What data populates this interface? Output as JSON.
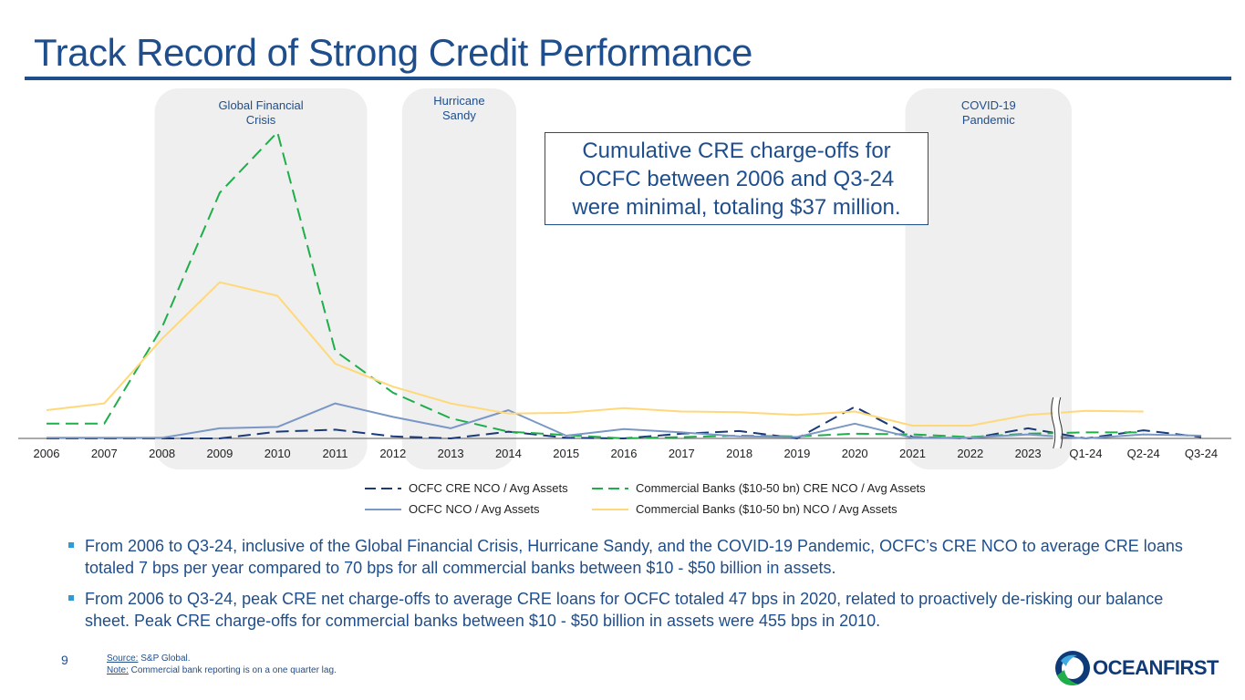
{
  "slide": {
    "title": "Track Record of Strong Credit Performance",
    "page_number": "9"
  },
  "callout": {
    "text": "Cumulative CRE charge-offs for OCFC between 2006 and Q3-24 were minimal, totaling $37 million."
  },
  "bullets": [
    "From 2006 to Q3-24, inclusive of the Global Financial Crisis, Hurricane Sandy, and the COVID-19 Pandemic, OCFC’s CRE NCO to average CRE loans totaled 7 bps per year compared to 70 bps for all commercial banks between $10 - $50 billion in assets.",
    "From 2006 to Q3-24, peak CRE net charge-offs to average CRE loans for OCFC totaled 47 bps in 2020, related to proactively de-risking our balance sheet. Peak CRE charge-offs for commercial banks between $10 - $50 billion in assets were 455 bps in 2010."
  ],
  "footnote": {
    "source_label": "Source:",
    "source_text": " S&P Global.",
    "note_label": "Note:",
    "note_text": " Commercial bank reporting is on a one quarter lag."
  },
  "logo": {
    "text": "OCEANFIRST"
  },
  "colors": {
    "title": "#1f4e8c",
    "ocfc_cre": "#1a3a7a",
    "bank_cre": "#1fae4a",
    "ocfc_nco": "#7a97c5",
    "bank_nco": "#ffd87a",
    "shade": "#efefef"
  },
  "chart_data": {
    "type": "line",
    "categories": [
      "2006",
      "2007",
      "2008",
      "2009",
      "2010",
      "2011",
      "2012",
      "2013",
      "2014",
      "2015",
      "2016",
      "2017",
      "2018",
      "2019",
      "2020",
      "2021",
      "2022",
      "2023",
      "Q1-24",
      "Q2-24",
      "Q3-24"
    ],
    "unit": "bps",
    "ylim": [
      0,
      470
    ],
    "axis_break_after": "2023",
    "grid": false,
    "legend_position": "bottom",
    "highlighted_periods": [
      {
        "label": "Global Financial Crisis",
        "from": "2008",
        "to": "2011"
      },
      {
        "label": "Hurricane Sandy",
        "from": "2012",
        "to": "2013"
      },
      {
        "label": "COVID-19 Pandemic",
        "from": "2021",
        "to": "2023"
      }
    ],
    "series": [
      {
        "name": "OCFC CRE NCO / Avg Assets",
        "style": "dashed",
        "color_key": "ocfc_cre",
        "values": [
          0,
          0,
          0,
          0,
          10,
          13,
          3,
          0,
          10,
          1,
          0,
          7,
          11,
          0,
          47,
          2,
          0,
          15,
          0,
          12,
          2
        ]
      },
      {
        "name": "Commercial Banks ($10-50 bn) CRE NCO / Avg Assets",
        "style": "dashed",
        "color_key": "bank_cre",
        "values": [
          22,
          22,
          165,
          365,
          455,
          130,
          68,
          30,
          10,
          5,
          0,
          2,
          4,
          3,
          7,
          6,
          2,
          7,
          9,
          9,
          null
        ]
      },
      {
        "name": "OCFC NCO / Avg Assets",
        "style": "solid",
        "color_key": "ocfc_nco",
        "values": [
          1,
          1,
          1,
          15,
          17,
          52,
          32,
          15,
          42,
          4,
          14,
          9,
          3,
          2,
          22,
          1,
          1,
          6,
          0,
          6,
          4
        ]
      },
      {
        "name": "Commercial Banks ($10-50 bn) NCO / Avg Assets",
        "style": "solid",
        "color_key": "bank_nco",
        "values": [
          42,
          52,
          148,
          232,
          212,
          111,
          77,
          52,
          37,
          38,
          45,
          40,
          39,
          35,
          40,
          19,
          19,
          35,
          41,
          40,
          null
        ]
      }
    ]
  }
}
